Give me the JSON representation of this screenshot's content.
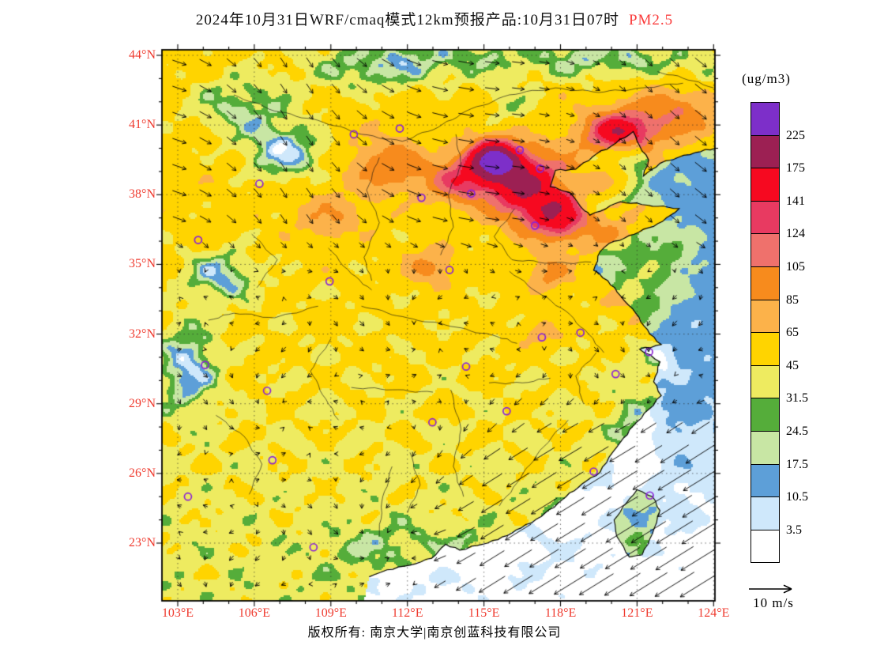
{
  "title": {
    "main": "2024年10月31日WRF/cmaq模式12km预报产品:10月31日07时",
    "highlight": "PM2.5"
  },
  "colors": {
    "axis_tick_text": "#ef3b2f",
    "title_highlight": "#fa3b3b",
    "marker": "#8a22d6",
    "graticule": "#444444"
  },
  "axes": {
    "lon_labels": [
      "103°E",
      "106°E",
      "109°E",
      "112°E",
      "115°E",
      "118°E",
      "121°E",
      "124°E"
    ],
    "lon_values": [
      103,
      106,
      109,
      112,
      115,
      118,
      121,
      124
    ],
    "lat_labels": [
      "44°N",
      "41°N",
      "38°N",
      "35°N",
      "32°N",
      "29°N",
      "26°N",
      "23°N"
    ],
    "lat_values": [
      44,
      41,
      38,
      35,
      32,
      29,
      26,
      23
    ]
  },
  "colorbar": {
    "unit": "(ug/m3)",
    "levels": [
      "225",
      "175",
      "141",
      "124",
      "105",
      "85",
      "65",
      "45",
      "31.5",
      "24.5",
      "17.5",
      "10.5",
      "3.5"
    ],
    "band_colors_top_to_bottom": [
      "#7d2fc9",
      "#9c2053",
      "#f60920",
      "#e83a61",
      "#ef716c",
      "#f78b1d",
      "#fcb24a",
      "#ffd400",
      "#eeeb60",
      "#55ad3a",
      "#c8e6a4",
      "#5d9fd8",
      "#cfe8fb",
      "#ffffff"
    ]
  },
  "wind_legend": {
    "label": "10 m/s"
  },
  "footer": {
    "copyright": "版权所有: 南京大学|南京创蓝科技有限公司"
  },
  "map": {
    "extent": {
      "lon_min": 103,
      "lon_max": 124,
      "lat_min": 23,
      "lat_max": 44
    },
    "city_markers_lonlat": [
      [
        103.8,
        36.05
      ],
      [
        103.4,
        25.0
      ],
      [
        106.2,
        38.47
      ],
      [
        109.9,
        40.6
      ],
      [
        111.7,
        40.85
      ],
      [
        116.4,
        39.92
      ],
      [
        117.2,
        39.12
      ],
      [
        114.5,
        38.05
      ],
      [
        112.55,
        37.87
      ],
      [
        117.0,
        36.67
      ],
      [
        113.65,
        34.76
      ],
      [
        108.95,
        34.27
      ],
      [
        117.27,
        31.86
      ],
      [
        118.78,
        32.06
      ],
      [
        121.47,
        31.23
      ],
      [
        120.16,
        30.28
      ],
      [
        114.3,
        30.6
      ],
      [
        112.98,
        28.2
      ],
      [
        115.89,
        28.68
      ],
      [
        119.3,
        26.08
      ],
      [
        121.5,
        25.05
      ],
      [
        106.5,
        29.56
      ],
      [
        104.07,
        30.67
      ],
      [
        106.71,
        26.57
      ],
      [
        108.32,
        22.82
      ]
    ]
  },
  "chart_data": {
    "type": "heatmap",
    "variable": "PM2.5",
    "unit": "ug/m3",
    "model": "WRF/CMAQ 12km",
    "valid_time": "2024-10-31 07时",
    "extent": {
      "lon_min": 103,
      "lon_max": 124,
      "lat_min": 23,
      "lat_max": 44
    },
    "levels": [
      225,
      175,
      141,
      124,
      105,
      85,
      65,
      45,
      31.5,
      24.5,
      17.5,
      10.5,
      3.5
    ],
    "wind_reference_ms": 10,
    "hotspots_lonlat_sx_sy_amp": [
      [
        115.4,
        39.5,
        0.95,
        0.8,
        175
      ],
      [
        116.6,
        38.4,
        1.6,
        1.4,
        120
      ],
      [
        117.9,
        37.0,
        1.2,
        1.0,
        95
      ],
      [
        114.0,
        38.6,
        1.1,
        0.9,
        70
      ],
      [
        120.3,
        40.7,
        1.3,
        0.85,
        115
      ],
      [
        122.6,
        41.6,
        1.7,
        1.2,
        48
      ],
      [
        119.6,
        38.6,
        1.3,
        0.9,
        55
      ],
      [
        111.3,
        39.2,
        1.5,
        1.1,
        48
      ],
      [
        108.9,
        37.0,
        1.3,
        1.0,
        32
      ],
      [
        112.9,
        34.9,
        1.0,
        0.8,
        42
      ],
      [
        117.6,
        34.6,
        0.9,
        0.8,
        40
      ],
      [
        117.2,
        32.0,
        0.9,
        0.7,
        26
      ],
      [
        119.9,
        36.3,
        1.0,
        0.8,
        28
      ],
      [
        121.9,
        35.2,
        1.6,
        1.4,
        14
      ],
      [
        120.8,
        33.5,
        1.2,
        1.2,
        18
      ],
      [
        103.4,
        30.6,
        1.1,
        1.9,
        -38
      ],
      [
        104.7,
        34.5,
        1.4,
        1.1,
        -36
      ],
      [
        107.2,
        39.8,
        1.6,
        1.2,
        -44
      ],
      [
        105.5,
        41.8,
        2.2,
        1.4,
        -33
      ],
      [
        110.5,
        43.2,
        2.2,
        1.0,
        -18
      ],
      [
        113.0,
        43.9,
        5.0,
        1.1,
        -30
      ],
      [
        120.0,
        43.9,
        3.0,
        1.0,
        -30
      ],
      [
        123.5,
        43.2,
        1.5,
        1.1,
        -18
      ],
      [
        116.0,
        41.8,
        1.2,
        0.9,
        -20
      ],
      [
        120.8,
        27.6,
        0.9,
        2.2,
        -22
      ],
      [
        118.3,
        24.4,
        1.3,
        1.0,
        -16
      ],
      [
        110.9,
        22.9,
        2.4,
        1.1,
        -14
      ],
      [
        114.6,
        22.8,
        1.5,
        0.8,
        -12
      ],
      [
        121.8,
        30.8,
        0.8,
        0.8,
        -14
      ]
    ]
  }
}
